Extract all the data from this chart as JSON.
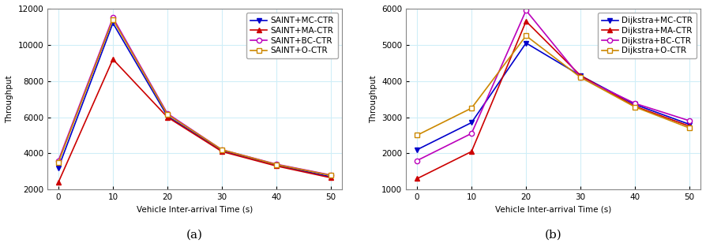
{
  "x": [
    0,
    10,
    20,
    30,
    40,
    50
  ],
  "left": {
    "title": "(a)",
    "xlabel": "Vehicle Inter-arrival Time (s)",
    "ylabel": "Throughput",
    "ylim": [
      2000,
      12000
    ],
    "yticks": [
      2000,
      4000,
      6000,
      8000,
      10000,
      12000
    ],
    "series": [
      {
        "label": "SAINT+MC-CTR",
        "color": "#0000cc",
        "marker": "v",
        "markerfacecolor": "#0000cc",
        "y": [
          3200,
          11200,
          6050,
          4150,
          3350,
          2700
        ]
      },
      {
        "label": "SAINT+MA-CTR",
        "color": "#cc0000",
        "marker": "^",
        "markerfacecolor": "#cc0000",
        "y": [
          2400,
          9200,
          6000,
          4100,
          3300,
          2650
        ]
      },
      {
        "label": "SAINT+BC-CTR",
        "color": "#bb00bb",
        "marker": "o",
        "markerfacecolor": "white",
        "y": [
          3600,
          11500,
          6200,
          4200,
          3400,
          2800
        ]
      },
      {
        "label": "SAINT+O-CTR",
        "color": "#cc8800",
        "marker": "s",
        "markerfacecolor": "white",
        "y": [
          3500,
          11400,
          6150,
          4200,
          3380,
          2780
        ]
      }
    ]
  },
  "right": {
    "title": "(b)",
    "xlabel": "Vehicle Inter-arrival Time (s)",
    "ylabel": "Throughput",
    "ylim": [
      1000,
      6000
    ],
    "yticks": [
      1000,
      2000,
      3000,
      4000,
      5000,
      6000
    ],
    "series": [
      {
        "label": "Dijkstra+MC-CTR",
        "color": "#0000cc",
        "marker": "v",
        "markerfacecolor": "#0000cc",
        "y": [
          2100,
          2850,
          5050,
          4150,
          3350,
          2800
        ]
      },
      {
        "label": "Dijkstra+MA-CTR",
        "color": "#cc0000",
        "marker": "^",
        "markerfacecolor": "#cc0000",
        "y": [
          1300,
          2050,
          5650,
          4150,
          3300,
          2750
        ]
      },
      {
        "label": "Dijkstra+BC-CTR",
        "color": "#bb00bb",
        "marker": "o",
        "markerfacecolor": "white",
        "y": [
          1800,
          2550,
          5950,
          4100,
          3380,
          2900
        ]
      },
      {
        "label": "Dijkstra+O-CTR",
        "color": "#cc8800",
        "marker": "s",
        "markerfacecolor": "white",
        "y": [
          2500,
          3250,
          5250,
          4100,
          3280,
          2700
        ]
      }
    ]
  },
  "ax_facecolor": "#ffffff",
  "fig_facecolor": "#ffffff",
  "grid_color": "#d0eef8",
  "spine_color": "#888888",
  "fontsize_label": 7.5,
  "fontsize_tick": 7.5,
  "fontsize_legend": 7.5,
  "fontsize_title": 11
}
